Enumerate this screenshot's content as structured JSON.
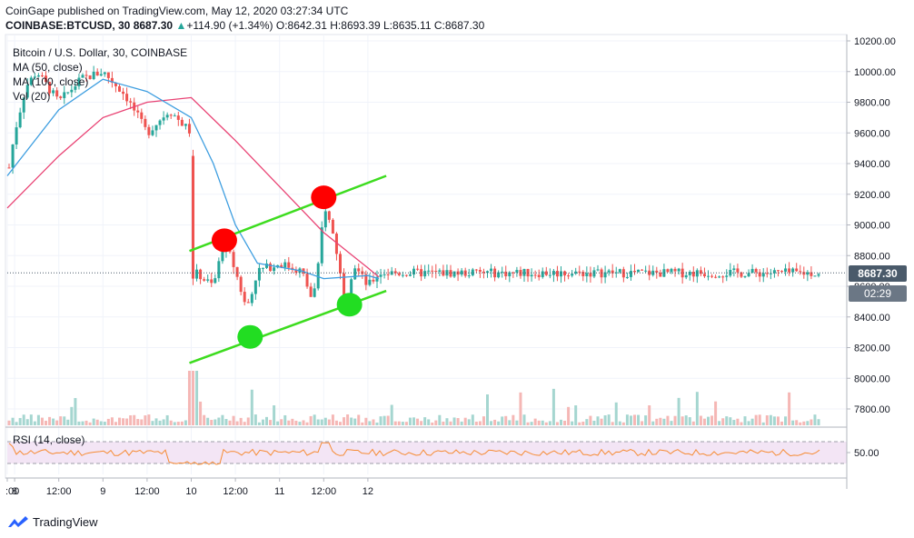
{
  "header": {
    "publisher_line": "CoinGape published on TradingView.com, May 12, 2020 03:27:34 UTC",
    "symbol": "COINBASE:BTCUSD, 30",
    "last": "8687.30",
    "change": "+114.90 (+1.34%)",
    "open_label": "O:",
    "open": "8642.31",
    "high_label": "H:",
    "high": "8693.39",
    "low_label": "L:",
    "low": "8635.11",
    "close_label": "C:",
    "close": "8687.30"
  },
  "legend": {
    "title": "Bitcoin / U.S. Dollar, 30, COINBASE",
    "ma50": "MA (50, close)",
    "ma100": "MA (100, close)",
    "vol": "Vol (20)"
  },
  "rsi": {
    "label": "RSI (14, close)",
    "tick": "50.00"
  },
  "price_tag": "8687.30",
  "time_tag": "02:29",
  "brand": "TradingView",
  "colors": {
    "up": "#26a69a",
    "down": "#ef5350",
    "ma50": "#3e9ee0",
    "ma100": "#e94374",
    "channel": "#3ddc1f",
    "marker_red": "#ff0000",
    "marker_green": "#22dd22",
    "rsi_line": "#f68b33",
    "rsi_band": "#9c27b0"
  },
  "chart_data": {
    "type": "line",
    "title": "Bitcoin / U.S. Dollar, 30, COINBASE",
    "x_ticks": [
      ":00",
      "8",
      "12:00",
      "9",
      "12:00",
      "10",
      "12:00",
      "11",
      "12:00",
      "12"
    ],
    "y_ticks": [
      10200,
      10000,
      9800,
      9600,
      9400,
      9200,
      9000,
      8800,
      8600,
      8400,
      8200,
      8000,
      7800
    ],
    "ylim": [
      7700,
      10250
    ],
    "close_path": [
      [
        "May 7 22:00",
        9300
      ],
      [
        "May 8 00:00",
        9600
      ],
      [
        "May 8 03:00",
        9900
      ],
      [
        "May 8 06:00",
        10000
      ],
      [
        "May 8 12:00",
        9800
      ],
      [
        "May 8 18:00",
        9950
      ],
      [
        "May 9 00:00",
        10000
      ],
      [
        "May 9 06:00",
        9850
      ],
      [
        "May 9 12:00",
        9600
      ],
      [
        "May 9 18:00",
        9750
      ],
      [
        "May 10 00:00",
        9600
      ],
      [
        "May 10 00:30",
        8700
      ],
      [
        "May 10 06:00",
        8600
      ],
      [
        "May 10 09:00",
        8900
      ],
      [
        "May 10 12:00",
        8700
      ],
      [
        "May 10 15:00",
        8450
      ],
      [
        "May 10 18:00",
        8700
      ],
      [
        "May 11 00:00",
        8750
      ],
      [
        "May 11 06:00",
        8700
      ],
      [
        "May 11 09:00",
        8500
      ],
      [
        "May 11 11:00",
        8800
      ],
      [
        "May 11 12:00",
        9150
      ],
      [
        "May 11 15:00",
        8900
      ],
      [
        "May 11 18:00",
        8450
      ],
      [
        "May 11 20:00",
        8750
      ],
      [
        "May 12 00:00",
        8600
      ],
      [
        "May 12 03:00",
        8687
      ]
    ],
    "ma50": [
      [
        "May 7 22:00",
        9320
      ],
      [
        "May 8 12:00",
        9750
      ],
      [
        "May 9 00:00",
        9950
      ],
      [
        "May 9 12:00",
        9870
      ],
      [
        "May 10 00:00",
        9700
      ],
      [
        "May 10 06:00",
        9400
      ],
      [
        "May 10 12:00",
        9000
      ],
      [
        "May 10 18:00",
        8750
      ],
      [
        "May 11 06:00",
        8700
      ],
      [
        "May 11 12:00",
        8650
      ],
      [
        "May 12 00:00",
        8670
      ],
      [
        "May 12 03:00",
        8650
      ]
    ],
    "ma100": [
      [
        "May 7 22:00",
        9110
      ],
      [
        "May 8 12:00",
        9450
      ],
      [
        "May 9 00:00",
        9700
      ],
      [
        "May 9 12:00",
        9800
      ],
      [
        "May 10 00:00",
        9830
      ],
      [
        "May 10 12:00",
        9550
      ],
      [
        "May 11 00:00",
        9250
      ],
      [
        "May 11 12:00",
        8950
      ],
      [
        "May 12 00:00",
        8720
      ],
      [
        "May 12 03:00",
        8660
      ]
    ],
    "channel_upper": [
      [
        "May 9 23:30",
        8830
      ],
      [
        "May 12 05:00",
        9320
      ]
    ],
    "channel_lower": [
      [
        "May 9 23:30",
        8100
      ],
      [
        "May 12 05:00",
        8570
      ]
    ],
    "resistance_touches": [
      [
        "May 10 09:00",
        8900
      ],
      [
        "May 11 12:00",
        9180
      ]
    ],
    "support_touches": [
      [
        "May 10 16:00",
        8270
      ],
      [
        "May 11 19:00",
        8480
      ]
    ],
    "last_price": 8687.3,
    "rsi_level": 50
  }
}
